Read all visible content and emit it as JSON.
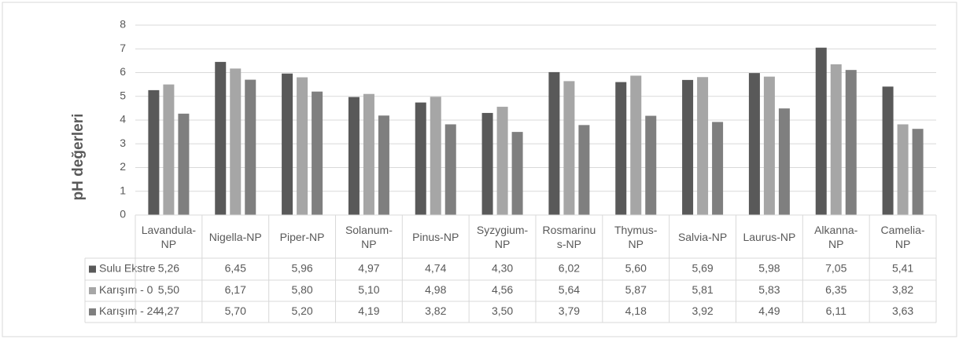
{
  "chart_data": {
    "type": "bar",
    "y_label": "pH değerleri",
    "categories": [
      "Lavandula-NP",
      "Nigella-NP",
      "Piper-NP",
      "Solanum-NP",
      "Pinus-NP",
      "Syzygium-NP",
      "Rosmarinus-NP",
      "Thymus-NP",
      "Salvia-NP",
      "Laurus-NP",
      "Alkanna-NP",
      "Camelia-NP"
    ],
    "series": [
      {
        "name": "Sulu Ekstre",
        "color": "#595959",
        "values": [
          5.26,
          6.45,
          5.96,
          4.97,
          4.74,
          4.3,
          6.02,
          5.6,
          5.69,
          5.98,
          7.05,
          5.41
        ],
        "value_labels": [
          "5,26",
          "6,45",
          "5,96",
          "4,97",
          "4,74",
          "4,30",
          "6,02",
          "5,60",
          "5,69",
          "5,98",
          "7,05",
          "5,41"
        ]
      },
      {
        "name": "Karışım - 0",
        "color": "#a6a6a6",
        "values": [
          5.5,
          6.17,
          5.8,
          5.1,
          4.98,
          4.56,
          5.64,
          5.87,
          5.81,
          5.83,
          6.35,
          3.82
        ],
        "value_labels": [
          "5,50",
          "6,17",
          "5,80",
          "5,10",
          "4,98",
          "4,56",
          "5,64",
          "5,87",
          "5,81",
          "5,83",
          "6,35",
          "3,82"
        ]
      },
      {
        "name": "Karışım - 24",
        "color": "#7f7f7f",
        "values": [
          4.27,
          5.7,
          5.2,
          4.19,
          3.82,
          3.5,
          3.79,
          4.18,
          3.92,
          4.49,
          6.11,
          3.63
        ],
        "value_labels": [
          "4,27",
          "5,70",
          "5,20",
          "4,19",
          "3,82",
          "3,50",
          "3,79",
          "4,18",
          "3,92",
          "4,49",
          "6,11",
          "3,63"
        ]
      }
    ],
    "ylim": [
      0,
      8
    ],
    "yticks": [
      0,
      1,
      2,
      3,
      4,
      5,
      6,
      7,
      8
    ],
    "grid": true
  }
}
